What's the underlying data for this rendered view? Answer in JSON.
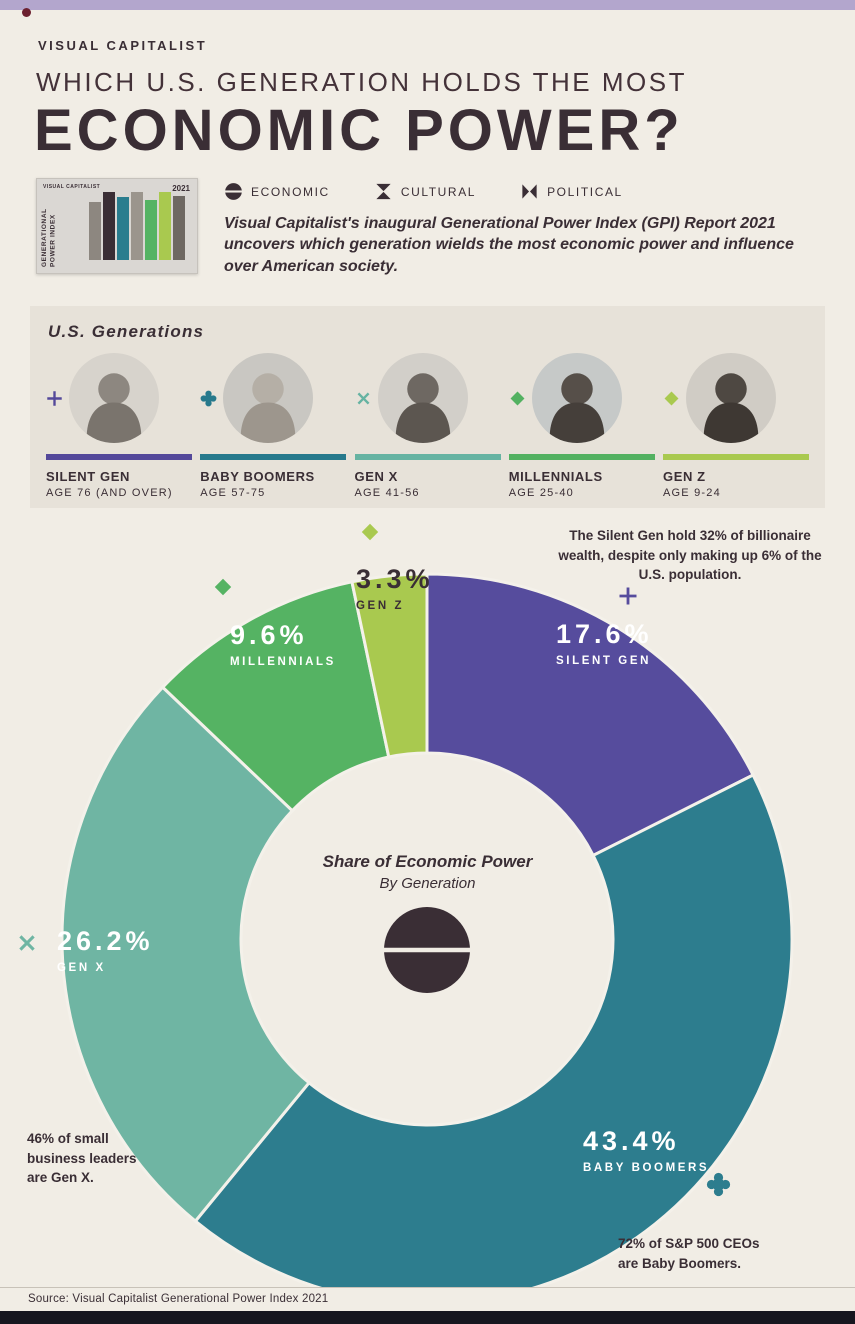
{
  "header": {
    "brand": "VISUAL CAPITALIST",
    "title_line1": "WHICH U.S. GENERATION HOLDS THE MOST",
    "title_line2": "ECONOMIC POWER?",
    "description": "Visual Capitalist's inaugural Generational Power Index (GPI) Report 2021 uncovers which generation wields the most economic power and influence over American society."
  },
  "report_cover": {
    "brand": "VISUAL CAPITALIST",
    "year": "2021",
    "title": "GENERATIONAL POWER INDEX"
  },
  "legend": {
    "items": [
      {
        "label": "ECONOMIC",
        "icon": "economic"
      },
      {
        "label": "CULTURAL",
        "icon": "cultural"
      },
      {
        "label": "POLITICAL",
        "icon": "political"
      }
    ]
  },
  "generations_panel": {
    "title": "U.S. Generations",
    "items": [
      {
        "name": "SILENT GEN",
        "age": "AGE 76 (AND OVER)",
        "color": "#54489a",
        "icon": "plus"
      },
      {
        "name": "BABY BOOMERS",
        "age": "AGE 57-75",
        "color": "#27798c",
        "icon": "clover"
      },
      {
        "name": "GEN X",
        "age": "AGE 41-56",
        "color": "#66b3a2",
        "icon": "x-cross"
      },
      {
        "name": "MILLENNIALS",
        "age": "AGE 25-40",
        "color": "#53b161",
        "icon": "diamond"
      },
      {
        "name": "GEN Z",
        "age": "AGE 9-24",
        "color": "#a9c94f",
        "icon": "diamond"
      }
    ]
  },
  "chart_data": {
    "type": "pie",
    "title": "Share of Economic Power",
    "subtitle": "By Generation",
    "unit": "%",
    "series": [
      {
        "label": "SILENT GEN",
        "value": 17.6,
        "color": "#564c9d",
        "icon": "plus"
      },
      {
        "label": "BABY BOOMERS",
        "value": 43.4,
        "color": "#2d7d8e",
        "icon": "clover"
      },
      {
        "label": "GEN X",
        "value": 26.2,
        "color": "#6fb5a3",
        "icon": "x-cross"
      },
      {
        "label": "MILLENNIALS",
        "value": 9.6,
        "color": "#55b363",
        "icon": "diamond"
      },
      {
        "label": "GEN Z",
        "value": 3.3,
        "color": "#a9c94f",
        "icon": "diamond"
      }
    ],
    "annotations": {
      "silent_gen": "The Silent Gen hold 32% of billionaire wealth, despite only making up 6% of the U.S. population.",
      "gen_x": "46% of small business leaders are Gen X.",
      "baby_boomers": "72% of S&P 500 CEOs are Baby Boomers."
    }
  },
  "footer": {
    "source": "Source: Visual Capitalist Generational Power Index 2021"
  }
}
